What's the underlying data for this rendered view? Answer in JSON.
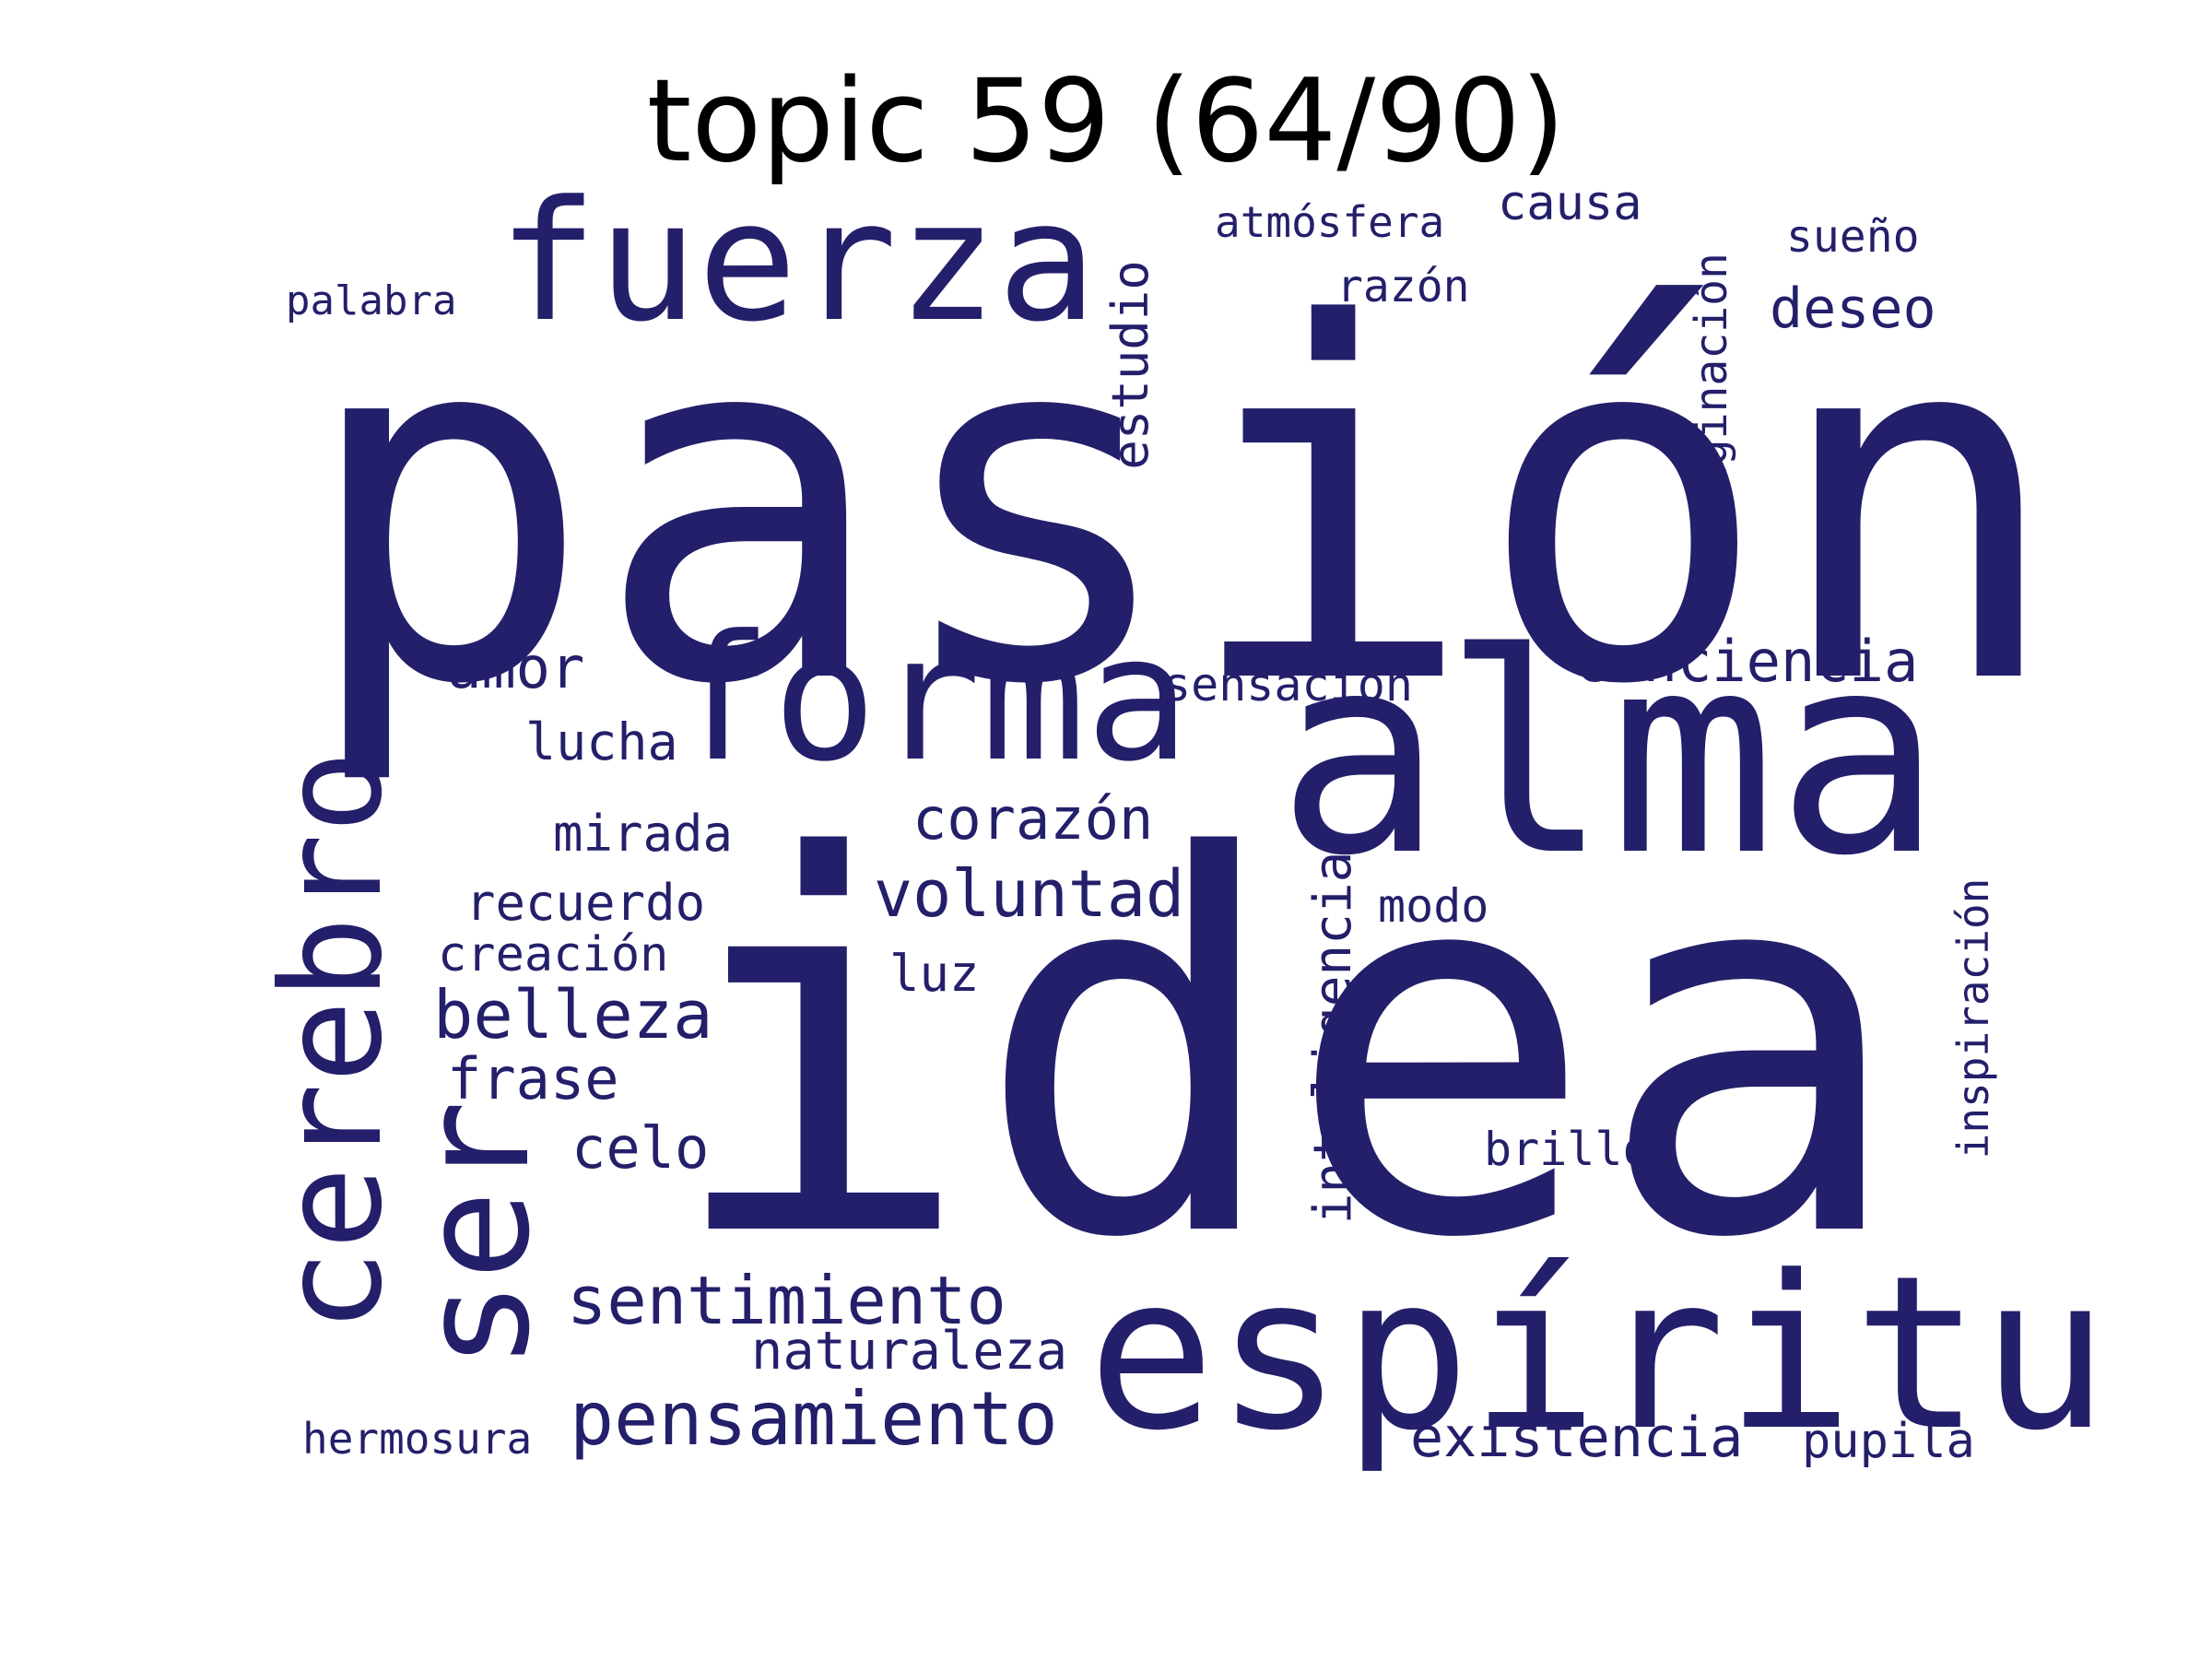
{
  "title": "topic 59 (64/90)",
  "word_color": "#231f6a",
  "words": [
    "pasión",
    "idea",
    "alma",
    "espíritu",
    "forma",
    "fuerza",
    "ser",
    "cerebro",
    "pensamiento",
    "sentimiento",
    "conciencia",
    "voluntad",
    "corazón",
    "belleza",
    "amor",
    "estudio",
    "imaginación",
    "inteligencia",
    "deseo",
    "existencia",
    "naturaleza",
    "frase",
    "celo",
    "lucha",
    "mirada",
    "recuerdo",
    "creación",
    "luz",
    "sensación",
    "modo",
    "brillo",
    "inspiración",
    "pupila",
    "hermosura",
    "atmósfera",
    "causa",
    "sueño",
    "razón",
    "palabra"
  ]
}
